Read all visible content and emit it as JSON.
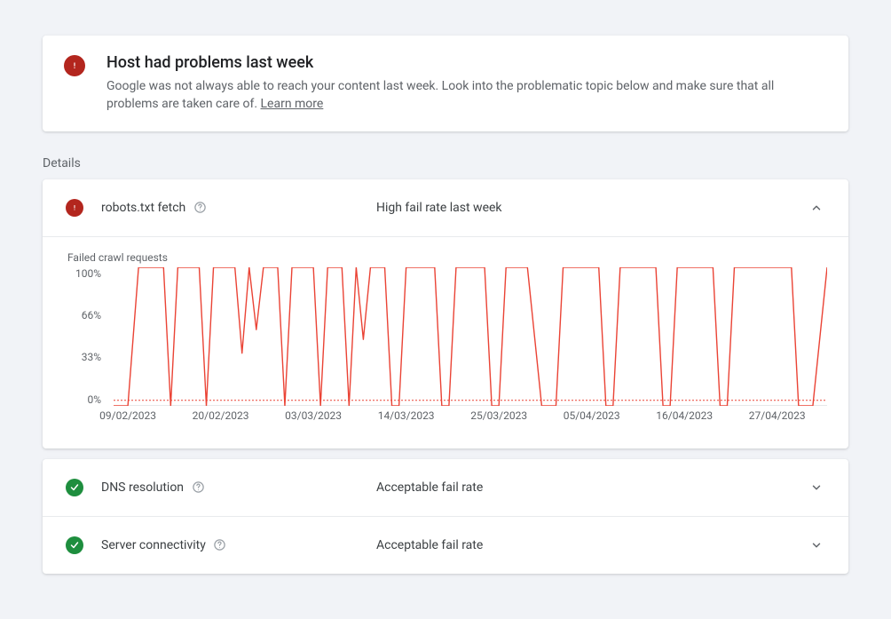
{
  "alert": {
    "title": "Host had problems last week",
    "description": "Google was not always able to reach your content last week. Look into the problematic topic below and make sure that all problems are taken care of. ",
    "learn_more": "Learn more"
  },
  "details_label": "Details",
  "rows": [
    {
      "status": "error",
      "title": "robots.txt fetch",
      "status_text": "High fail rate last week",
      "expanded": true
    },
    {
      "status": "ok",
      "title": "DNS resolution",
      "status_text": "Acceptable fail rate",
      "expanded": false
    },
    {
      "status": "ok",
      "title": "Server connectivity",
      "status_text": "Acceptable fail rate",
      "expanded": false
    }
  ],
  "chart": {
    "type": "line",
    "caption": "Failed crawl requests",
    "ylabels": [
      "100%",
      "66%",
      "33%",
      "0%"
    ],
    "ylim": [
      0,
      100
    ],
    "xlabels": [
      {
        "label": "09/02/2023",
        "pct": 2
      },
      {
        "label": "20/02/2023",
        "pct": 15
      },
      {
        "label": "03/03/2023",
        "pct": 28
      },
      {
        "label": "14/03/2023",
        "pct": 41
      },
      {
        "label": "25/03/2023",
        "pct": 54
      },
      {
        "label": "05/04/2023",
        "pct": 67
      },
      {
        "label": "16/04/2023",
        "pct": 80
      },
      {
        "label": "27/04/2023",
        "pct": 93
      }
    ],
    "line_color": "#ea4335",
    "line_width": 1.4,
    "threshold_color": "#ea4335",
    "threshold_dash": "2 2",
    "threshold_y": 4,
    "axis_color": "#9aa0a6",
    "axis_text_color": "#5f6368",
    "background_color": "#ffffff",
    "values": [
      {
        "x": 0,
        "y": 0
      },
      {
        "x": 2,
        "y": 0
      },
      {
        "x": 3.5,
        "y": 100
      },
      {
        "x": 7,
        "y": 100
      },
      {
        "x": 8,
        "y": 0
      },
      {
        "x": 9,
        "y": 100
      },
      {
        "x": 12,
        "y": 100
      },
      {
        "x": 13,
        "y": 0
      },
      {
        "x": 14,
        "y": 100
      },
      {
        "x": 17,
        "y": 100
      },
      {
        "x": 18,
        "y": 38
      },
      {
        "x": 19,
        "y": 100
      },
      {
        "x": 20,
        "y": 55
      },
      {
        "x": 21,
        "y": 100
      },
      {
        "x": 23,
        "y": 100
      },
      {
        "x": 24,
        "y": 0
      },
      {
        "x": 25,
        "y": 100
      },
      {
        "x": 28,
        "y": 100
      },
      {
        "x": 29,
        "y": 0
      },
      {
        "x": 30,
        "y": 100
      },
      {
        "x": 32,
        "y": 100
      },
      {
        "x": 33,
        "y": 0
      },
      {
        "x": 34,
        "y": 100
      },
      {
        "x": 35,
        "y": 48
      },
      {
        "x": 36,
        "y": 100
      },
      {
        "x": 38,
        "y": 100
      },
      {
        "x": 39,
        "y": 0
      },
      {
        "x": 40,
        "y": 0
      },
      {
        "x": 41,
        "y": 100
      },
      {
        "x": 45,
        "y": 100
      },
      {
        "x": 46,
        "y": 0
      },
      {
        "x": 47,
        "y": 0
      },
      {
        "x": 48,
        "y": 100
      },
      {
        "x": 52,
        "y": 100
      },
      {
        "x": 53,
        "y": 0
      },
      {
        "x": 54,
        "y": 0
      },
      {
        "x": 55,
        "y": 100
      },
      {
        "x": 58,
        "y": 100
      },
      {
        "x": 60,
        "y": 0
      },
      {
        "x": 62,
        "y": 0
      },
      {
        "x": 63,
        "y": 100
      },
      {
        "x": 68,
        "y": 100
      },
      {
        "x": 69,
        "y": 0
      },
      {
        "x": 70,
        "y": 0
      },
      {
        "x": 71,
        "y": 100
      },
      {
        "x": 76,
        "y": 100
      },
      {
        "x": 77,
        "y": 0
      },
      {
        "x": 78,
        "y": 0
      },
      {
        "x": 79,
        "y": 100
      },
      {
        "x": 84,
        "y": 100
      },
      {
        "x": 85,
        "y": 0
      },
      {
        "x": 86,
        "y": 0
      },
      {
        "x": 87,
        "y": 100
      },
      {
        "x": 95,
        "y": 100
      },
      {
        "x": 96,
        "y": 0
      },
      {
        "x": 98,
        "y": 0
      },
      {
        "x": 100,
        "y": 100
      }
    ]
  },
  "colors": {
    "page_bg": "#f1f3f7",
    "card_bg": "#ffffff",
    "text_primary": "#202124",
    "text_secondary": "#5f6368",
    "error": "#b3261e",
    "success": "#1e8e3e",
    "divider": "#e8eaed"
  },
  "fonts": {
    "family": "Roboto, Arial, sans-serif",
    "title_size": 18,
    "body_size": 14,
    "small_size": 12
  }
}
